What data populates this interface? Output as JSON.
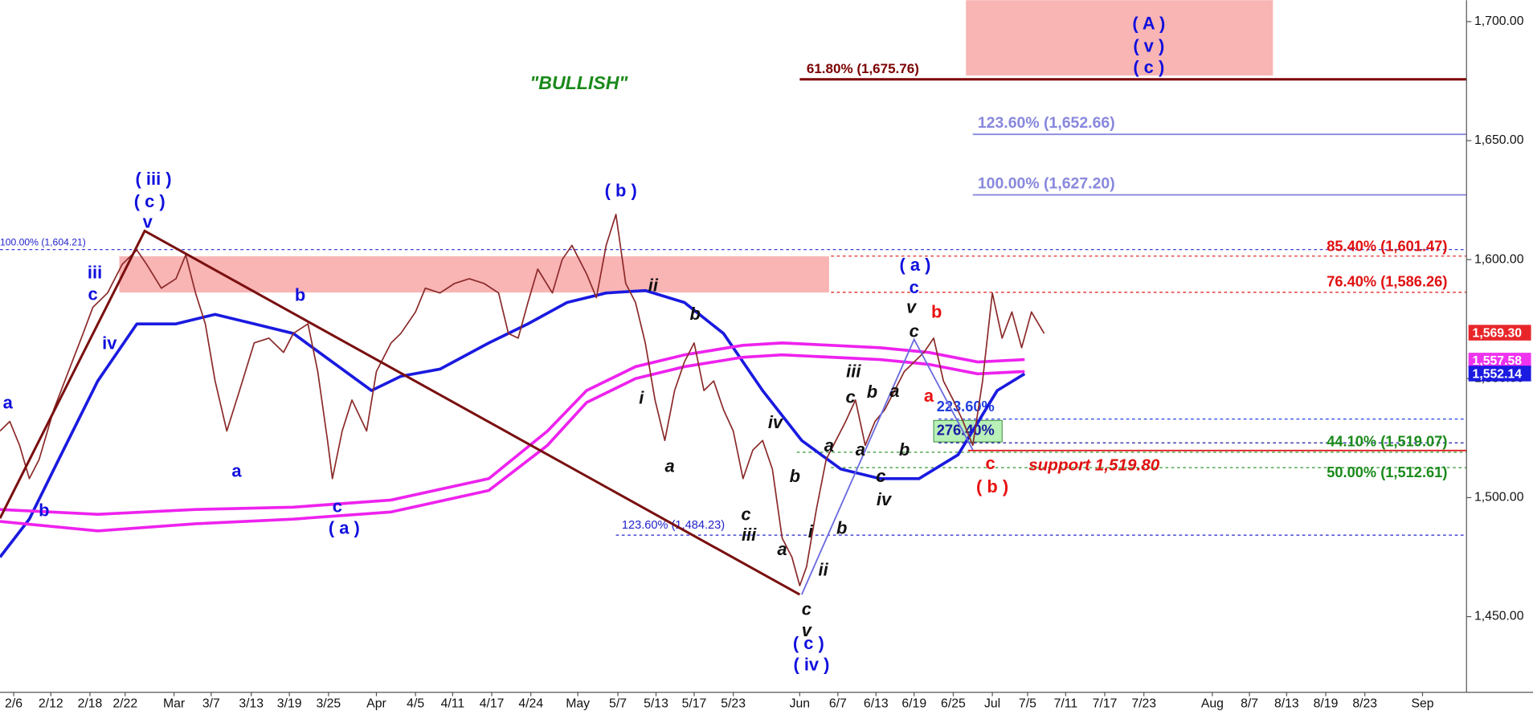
{
  "chart_data": {
    "type": "line",
    "xlim": [
      0,
      150
    ],
    "ylim": [
      1418.2,
      1709.0
    ],
    "xticks": [
      {
        "value": 1.4,
        "label": "2/6"
      },
      {
        "value": 5.2,
        "label": "2/12"
      },
      {
        "value": 9.2,
        "label": "2/18"
      },
      {
        "value": 12.8,
        "label": "2/22"
      },
      {
        "value": 17.8,
        "label": "Mar"
      },
      {
        "value": 21.6,
        "label": "3/7"
      },
      {
        "value": 25.7,
        "label": "3/13"
      },
      {
        "value": 29.6,
        "label": "3/19"
      },
      {
        "value": 33.6,
        "label": "3/25"
      },
      {
        "value": 38.5,
        "label": "Apr"
      },
      {
        "value": 42.5,
        "label": "4/5"
      },
      {
        "value": 46.3,
        "label": "4/11"
      },
      {
        "value": 50.3,
        "label": "4/17"
      },
      {
        "value": 54.3,
        "label": "4/24"
      },
      {
        "value": 59.1,
        "label": "May"
      },
      {
        "value": 63.2,
        "label": "5/7"
      },
      {
        "value": 67.1,
        "label": "5/13"
      },
      {
        "value": 71,
        "label": "5/17"
      },
      {
        "value": 75,
        "label": "5/23"
      },
      {
        "value": 81.8,
        "label": "Jun"
      },
      {
        "value": 85.7,
        "label": "6/7"
      },
      {
        "value": 89.6,
        "label": "6/13"
      },
      {
        "value": 93.5,
        "label": "6/19"
      },
      {
        "value": 97.5,
        "label": "6/25"
      },
      {
        "value": 101.5,
        "label": "Jul"
      },
      {
        "value": 105.1,
        "label": "7/5"
      },
      {
        "value": 109,
        "label": "7/11"
      },
      {
        "value": 113,
        "label": "7/17"
      },
      {
        "value": 117,
        "label": "7/23"
      },
      {
        "value": 124,
        "label": "Aug"
      },
      {
        "value": 127.8,
        "label": "8/7"
      },
      {
        "value": 131.6,
        "label": "8/13"
      },
      {
        "value": 135.6,
        "label": "8/19"
      },
      {
        "value": 139.6,
        "label": "8/23"
      },
      {
        "value": 145.5,
        "label": "Sep"
      }
    ],
    "yticks": [
      {
        "value": 1450,
        "label": "1,450.00"
      },
      {
        "value": 1500,
        "label": "1,500.00"
      },
      {
        "value": 1550,
        "label": "1,550.00"
      },
      {
        "value": 1600,
        "label": "1,600.00"
      },
      {
        "value": 1650,
        "label": "1,650.00"
      },
      {
        "value": 1700,
        "label": "1,700.00"
      }
    ],
    "series": [
      {
        "color": "#8b2a2a",
        "x": [
          0,
          1,
          2,
          3,
          4,
          5.5,
          7,
          8.5,
          9.5,
          11,
          12.5,
          14,
          15,
          16.5,
          18,
          19,
          20,
          21,
          22,
          23.2,
          24.5,
          26,
          27.5,
          29,
          30,
          31.5,
          32.5,
          33.5,
          34,
          35,
          36,
          37.5,
          38.5,
          40,
          41,
          42.5,
          43.5,
          45,
          46.5,
          48,
          49.5,
          51,
          52,
          53,
          54,
          55,
          56.5,
          57.5,
          58.5,
          60,
          61,
          62,
          63,
          64,
          65,
          66,
          67,
          68,
          69,
          70,
          71,
          72,
          73,
          74,
          75,
          76,
          77,
          78,
          79,
          80,
          81,
          81.8,
          82.5,
          83.5,
          84.5,
          85.5,
          86.5,
          87.5,
          88.5,
          89.5,
          90.5,
          91.5,
          92.5,
          93.5,
          94.5,
          95.5,
          96.5,
          97.5,
          98.5,
          99.5,
          100.5,
          101.5,
          102.5,
          103.5,
          104.5,
          105.5,
          106.8
        ],
        "values": [
          1528,
          1532,
          1522,
          1508,
          1516,
          1537,
          1553,
          1569,
          1580,
          1586,
          1598,
          1604,
          1598,
          1588,
          1592,
          1602,
          1586,
          1573,
          1549,
          1528,
          1545,
          1565,
          1567,
          1561,
          1569,
          1573,
          1553,
          1524,
          1508,
          1528,
          1541,
          1528,
          1553,
          1565,
          1569,
          1578,
          1588,
          1586,
          1590,
          1592,
          1590,
          1586,
          1569,
          1567,
          1582,
          1596,
          1586,
          1600,
          1606,
          1594,
          1584,
          1606,
          1619,
          1590,
          1582,
          1565,
          1541,
          1524,
          1545,
          1557,
          1565,
          1545,
          1549,
          1537,
          1528,
          1508,
          1520,
          1524,
          1512,
          1483,
          1475,
          1463,
          1471,
          1495,
          1516,
          1524,
          1532,
          1541,
          1522,
          1532,
          1537,
          1545,
          1553,
          1557,
          1561,
          1567,
          1549,
          1541,
          1532,
          1522,
          1549,
          1586,
          1567,
          1578,
          1563,
          1578,
          1569
        ]
      },
      {
        "color": "#1a1ae0",
        "x": [
          0,
          3,
          6,
          10,
          14,
          18,
          22,
          26,
          30,
          34,
          38,
          41,
          45,
          50,
          54,
          58,
          62,
          66,
          70,
          74,
          78,
          82,
          86,
          90,
          94,
          98,
          102,
          104.8
        ],
        "values": [
          1475,
          1491,
          1516,
          1549,
          1573,
          1573,
          1577,
          1573,
          1569,
          1557,
          1545,
          1551,
          1554,
          1565,
          1573,
          1582,
          1586,
          1587,
          1582,
          1569,
          1545,
          1524,
          1512,
          1508,
          1508,
          1518,
          1545,
          1552
        ]
      },
      {
        "color": "#ee22ee",
        "x": [
          0,
          10,
          20,
          30,
          40,
          50,
          56,
          60,
          65,
          70,
          76,
          80,
          85,
          90,
          95,
          100,
          104.8
        ],
        "values": [
          1495,
          1493,
          1495,
          1496,
          1499,
          1508,
          1528,
          1545,
          1555,
          1560,
          1564,
          1565,
          1564,
          1563,
          1561,
          1557,
          1558
        ]
      },
      {
        "color": "#ee22ee",
        "x": [
          0,
          10,
          20,
          30,
          40,
          50,
          56,
          60,
          65,
          70,
          76,
          80,
          85,
          90,
          95,
          100,
          104.8
        ],
        "values": [
          1490,
          1486,
          1489,
          1491,
          1494,
          1503,
          1522,
          1540,
          1550,
          1555,
          1559,
          1560,
          1559,
          1558,
          1556,
          1552,
          1553
        ]
      }
    ],
    "price_labels": [
      {
        "value": 1569.3,
        "label": "1,569.30",
        "color": "#e8262a"
      },
      {
        "value": 1557.58,
        "label": "1,557.58",
        "color": "#ee33ee"
      },
      {
        "value": 1552.14,
        "label": "1,552.14",
        "color": "#1a1ae0"
      }
    ],
    "levels": [
      {
        "label": "61.80% (1,675.76)",
        "value": 1675.76,
        "color": "#7b0000",
        "style": "solid"
      },
      {
        "label": "123.60% (1,652.66)",
        "value": 1652.66,
        "color": "#8888dd",
        "style": "solid"
      },
      {
        "label": "100.00% (1,627.20)",
        "value": 1627.2,
        "color": "#8888dd",
        "style": "solid"
      },
      {
        "label": "100.00% (1,604.21)",
        "value": 1604.21,
        "color": "#2222cc",
        "style": "dotted"
      },
      {
        "label": "85.40% (1,601.47)",
        "value": 1601.47,
        "color": "#e01010",
        "style": "dotted"
      },
      {
        "label": "76.40% (1,586.26)",
        "value": 1586.26,
        "color": "#e01010",
        "style": "dotted"
      },
      {
        "label": "223.60%",
        "value": 1533,
        "color": "#1f3fdd",
        "style": "dotted"
      },
      {
        "label": "276.40%",
        "value": 1523,
        "color": "#1a1aa0",
        "style": "dotted"
      },
      {
        "label": "44.10% (1,519.07)",
        "value": 1519.07,
        "color": "#1a8a1a",
        "style": "dotted"
      },
      {
        "label": "50.00% (1,512.61)",
        "value": 1512.61,
        "color": "#1a8a1a",
        "style": "dotted"
      },
      {
        "label": "123.60% (1,484.23)",
        "value": 1484.23,
        "color": "#2222cc",
        "style": "dotted"
      },
      {
        "label": "support 1,519.80",
        "value": 1519.8,
        "color": "#e01010",
        "style": "solid"
      }
    ],
    "annotations": [
      {
        "color": "#1010dd",
        "italic": false,
        "texts": [
          "a",
          "b",
          "c",
          "iii",
          "iv",
          "( iii )",
          "( c )",
          "v",
          "b",
          "a",
          "c",
          "( a )",
          "( b )",
          "( a )",
          "c",
          "( c )",
          "( iv )",
          "( A )",
          "( v )",
          "( c )"
        ]
      },
      {
        "color": "#111111",
        "italic": true,
        "texts": [
          "ii",
          "b",
          "i",
          "a",
          "iv",
          "b",
          "c",
          "iii",
          "a",
          "i",
          "ii",
          "b",
          "a",
          "a",
          "iii",
          "c",
          "b",
          "a",
          "c",
          "iv",
          "b",
          "v",
          "c",
          "c",
          "v"
        ]
      },
      {
        "color": "#e81010",
        "italic": false,
        "texts": [
          "b",
          "a",
          "c",
          "( b )"
        ]
      },
      {
        "color": "#1a8a1a",
        "italic": true,
        "texts": [
          "\"BULLISH\""
        ]
      }
    ]
  }
}
